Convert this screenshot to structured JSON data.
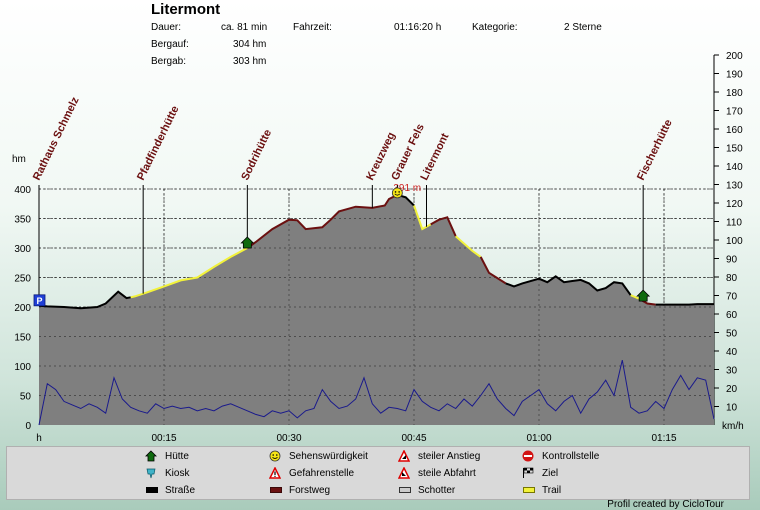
{
  "header": {
    "title": "Litermont",
    "labels": {
      "dauer": "Dauer:",
      "bergauf": "Bergauf:",
      "bergab": "Bergab:",
      "fahrzeit": "Fahrzeit:",
      "kategorie": "Kategorie:"
    },
    "values": {
      "dauer": "ca. 81 min",
      "bergauf": "304 hm",
      "bergab": "303 hm",
      "fahrzeit": "01:16:20 h",
      "kategorie": "2 Sterne"
    }
  },
  "chart_data": {
    "type": "area",
    "x_axis": {
      "label": "h",
      "ticks": [
        "00:15",
        "00:30",
        "00:45",
        "01:00",
        "01:15"
      ],
      "range_min": [
        0,
        81
      ]
    },
    "y_left": {
      "label": "hm",
      "ticks": [
        0,
        50,
        100,
        150,
        200,
        250,
        300,
        350,
        400
      ],
      "range": [
        0,
        400
      ]
    },
    "y_right": {
      "label": "km/h",
      "ticks": [
        10,
        20,
        30,
        40,
        50,
        60,
        70,
        80,
        90,
        100,
        110,
        120,
        130,
        140,
        150,
        160,
        170,
        180,
        190,
        200
      ],
      "range": [
        0,
        200
      ]
    },
    "grid": true,
    "elevation": {
      "x": [
        0,
        1,
        3,
        5,
        7,
        8,
        9.5,
        10.5,
        11.5,
        13,
        15,
        17,
        19,
        21,
        23,
        25,
        26,
        28,
        30,
        31,
        32,
        34,
        35,
        36,
        38,
        40,
        41.5,
        42,
        43,
        44,
        45,
        46,
        47,
        48,
        49,
        50,
        52,
        53,
        54,
        56,
        57,
        58,
        60,
        61,
        62,
        63,
        64,
        65,
        66,
        67,
        68,
        69,
        70,
        71,
        72,
        73,
        74,
        75,
        76,
        77,
        78,
        79,
        80,
        81
      ],
      "y": [
        202,
        201,
        200,
        198,
        200,
        206,
        226,
        215,
        218,
        225,
        235,
        245,
        250,
        268,
        285,
        300,
        310,
        332,
        348,
        347,
        332,
        335,
        348,
        362,
        370,
        368,
        372,
        383,
        390,
        386,
        372,
        332,
        340,
        348,
        352,
        320,
        295,
        285,
        258,
        240,
        235,
        240,
        248,
        242,
        252,
        242,
        244,
        246,
        240,
        228,
        232,
        242,
        240,
        220,
        214,
        206,
        204,
        204,
        204,
        204,
        204,
        205,
        205,
        205
      ],
      "max_label": "391 m"
    },
    "speed": {
      "x": [
        0,
        1,
        2,
        3,
        4,
        5,
        6,
        7,
        8,
        9,
        10,
        11,
        12,
        13,
        14,
        15,
        16,
        17,
        18,
        19,
        20,
        21,
        22,
        23,
        24,
        25,
        26,
        27,
        28,
        29,
        30,
        31,
        32,
        33,
        34,
        35,
        36,
        37,
        38,
        39,
        40,
        41,
        42,
        43,
        44,
        45,
        46,
        47,
        48,
        49,
        50,
        51,
        52,
        53,
        54,
        55,
        56,
        57,
        58,
        59,
        60,
        61,
        62,
        63,
        64,
        65,
        66,
        67,
        68,
        69,
        70,
        71,
        72,
        73,
        74,
        75,
        76,
        77,
        78,
        79,
        80,
        81
      ],
      "y": [
        0,
        35,
        30,
        20,
        17,
        14,
        18,
        15,
        10,
        40,
        22,
        15,
        12,
        10,
        18,
        14,
        16,
        14,
        15,
        12,
        14,
        12,
        16,
        18,
        15,
        12,
        9,
        7,
        12,
        10,
        12,
        6,
        12,
        14,
        30,
        20,
        14,
        16,
        22,
        40,
        18,
        10,
        15,
        14,
        12,
        30,
        20,
        15,
        12,
        18,
        14,
        22,
        16,
        25,
        35,
        22,
        14,
        8,
        20,
        25,
        30,
        18,
        12,
        20,
        25,
        10,
        22,
        28,
        38,
        25,
        55,
        15,
        10,
        12,
        20,
        14,
        30,
        42,
        30,
        40,
        38,
        5
      ]
    },
    "surfaces": {
      "colors": {
        "strasse": "#000000",
        "forstweg": "#6b1010",
        "trail": "#f2f23a",
        "schotter": "#cccccc"
      },
      "segments": [
        {
          "from": 0,
          "to": 11,
          "type": "strasse"
        },
        {
          "from": 11,
          "to": 25,
          "type": "trail"
        },
        {
          "from": 25,
          "to": 43,
          "type": "forstweg"
        },
        {
          "from": 43,
          "to": 45,
          "type": "strasse"
        },
        {
          "from": 45,
          "to": 47,
          "type": "trail"
        },
        {
          "from": 47,
          "to": 50,
          "type": "forstweg"
        },
        {
          "from": 50,
          "to": 53,
          "type": "trail"
        },
        {
          "from": 53,
          "to": 56,
          "type": "forstweg"
        },
        {
          "from": 56,
          "to": 71,
          "type": "strasse"
        },
        {
          "from": 71,
          "to": 72,
          "type": "trail"
        },
        {
          "from": 72,
          "to": 74,
          "type": "forstweg"
        },
        {
          "from": 74,
          "to": 81,
          "type": "strasse"
        }
      ]
    },
    "waypoints": [
      {
        "name": "Rathaus Schmelz",
        "x": 0,
        "icon": "parking"
      },
      {
        "name": "Pfadfinderhütte",
        "x": 12.5,
        "icon": "none"
      },
      {
        "name": "Sodrihütte",
        "x": 25,
        "icon": "huette"
      },
      {
        "name": "Kreuzweg",
        "x": 40,
        "icon": "none"
      },
      {
        "name": "Grauer Fels",
        "x": 43,
        "icon": "sight"
      },
      {
        "name": "Litermont",
        "x": 46.5,
        "icon": "none"
      },
      {
        "name": "Fischerhütte",
        "x": 72.5,
        "icon": "huette"
      }
    ]
  },
  "legend": [
    {
      "icon": "huette-icon",
      "label": "Hütte"
    },
    {
      "icon": "sight-icon",
      "label": "Sehenswürdigkeit"
    },
    {
      "icon": "steep-up-icon",
      "label": "steiler Anstieg"
    },
    {
      "icon": "stop-icon",
      "label": "Kontrollstelle"
    },
    {
      "icon": "kiosk-icon",
      "label": "Kiosk"
    },
    {
      "icon": "danger-icon",
      "label": "Gefahrenstelle"
    },
    {
      "icon": "steep-down-icon",
      "label": "steile Abfahrt"
    },
    {
      "icon": "flag-icon",
      "label": "Ziel"
    },
    {
      "icon": "road-swatch",
      "label": "Straße"
    },
    {
      "icon": "forest-swatch",
      "label": "Forstweg"
    },
    {
      "icon": "gravel-swatch",
      "label": "Schotter"
    },
    {
      "icon": "trail-swatch",
      "label": "Trail"
    }
  ],
  "credit": "Profil created by CicloTour"
}
